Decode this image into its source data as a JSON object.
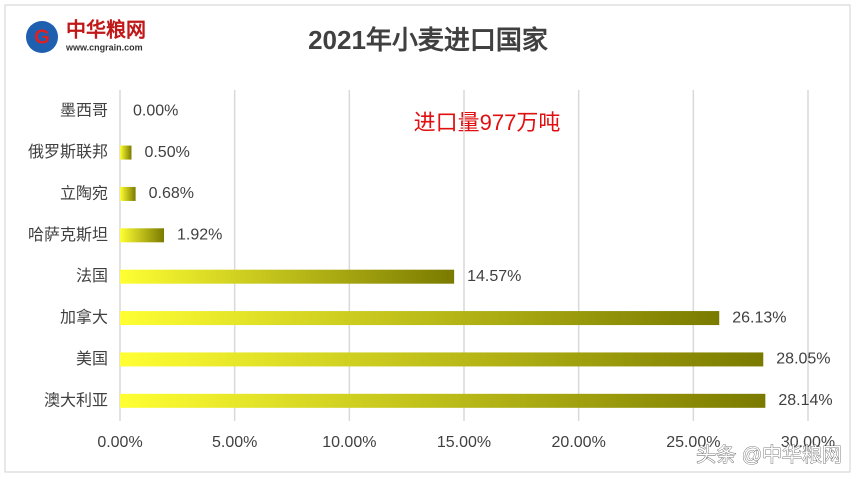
{
  "brand": {
    "name": "中华粮网",
    "url": "www.cngrain.com"
  },
  "watermark": "头条 @中华粮网",
  "chart_data": {
    "type": "hbar",
    "title": "2021年小麦进口国家",
    "annotation": "进口量977万吨",
    "categories": [
      "墨西哥",
      "俄罗斯联邦",
      "立陶宛",
      "哈萨克斯坦",
      "法国",
      "加拿大",
      "美国",
      "澳大利亚"
    ],
    "values": [
      0,
      0.5,
      0.68,
      1.92,
      14.57,
      26.13,
      28.05,
      28.14
    ],
    "value_labels": [
      "0.00%",
      "0.50%",
      "0.68%",
      "1.92%",
      "14.57%",
      "26.13%",
      "28.05%",
      "28.14%"
    ],
    "colors": [
      "#ffff33",
      "#7a7a00"
    ],
    "xlim": [
      0,
      30
    ],
    "xticks": [
      {
        "value": 0,
        "label": "0.00%"
      },
      {
        "value": 5,
        "label": "5.00%"
      },
      {
        "value": 10,
        "label": "10.00%"
      },
      {
        "value": 15,
        "label": "15.00%"
      },
      {
        "value": 20,
        "label": "20.00%"
      },
      {
        "value": 25,
        "label": "25.00%"
      },
      {
        "value": 30,
        "label": "30.00%"
      }
    ],
    "grid": true
  }
}
